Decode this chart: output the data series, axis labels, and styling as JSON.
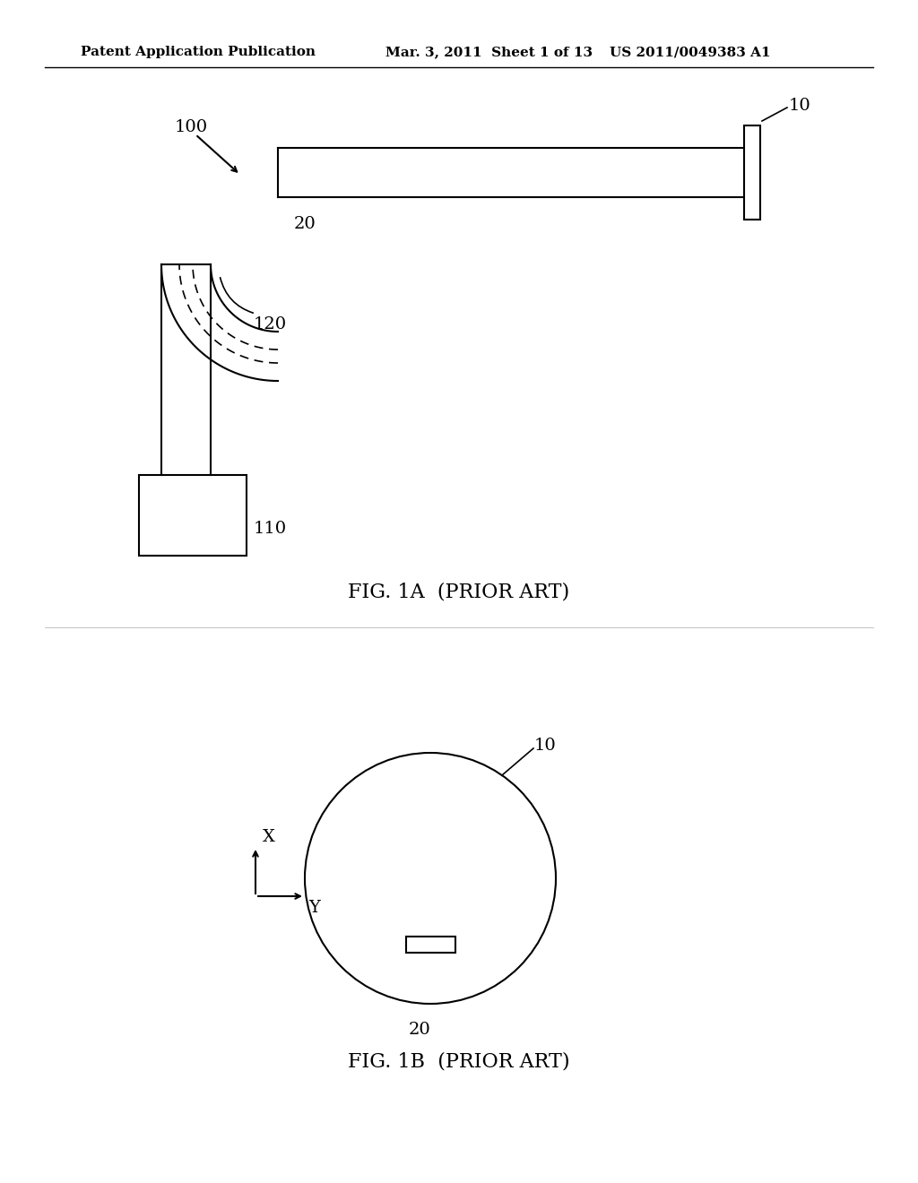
{
  "bg_color": "#ffffff",
  "text_color": "#000000",
  "header_left": "Patent Application Publication",
  "header_mid": "Mar. 3, 2011  Sheet 1 of 13",
  "header_right": "US 2011/0049383 A1",
  "fig1a_label": "FIG. 1A  (PRIOR ART)",
  "fig1b_label": "FIG. 1B  (PRIOR ART)",
  "label_100": "100",
  "label_10_top": "10",
  "label_20_top": "20",
  "label_120": "120",
  "label_110": "110",
  "label_10_bot": "10",
  "label_20_bot": "20"
}
